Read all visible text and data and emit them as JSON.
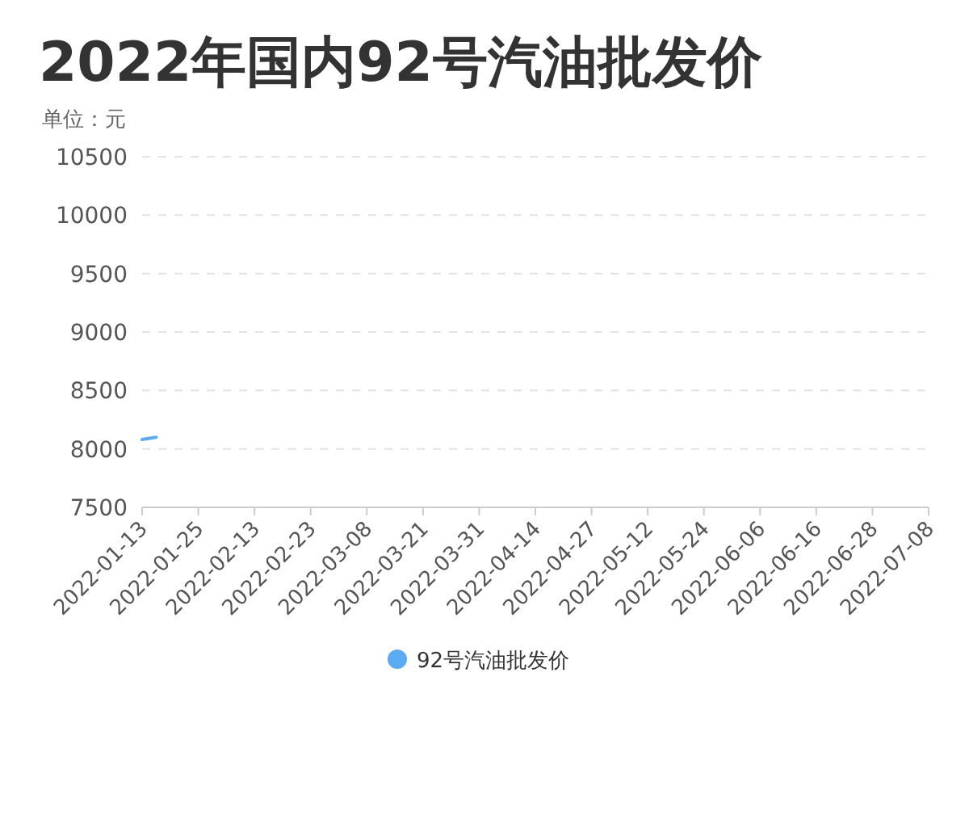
{
  "chart_data": {
    "type": "line",
    "title": "2022年国内92号汽油批发价",
    "ylabel": "单位：元",
    "categories": [
      "2022-01-13",
      null,
      null,
      null,
      "2022-01-25",
      null,
      null,
      null,
      "2022-02-13",
      null,
      null,
      null,
      "2022-02-23",
      null,
      null,
      null,
      "2022-03-08",
      null,
      null,
      null,
      "2022-03-21",
      null,
      null,
      null,
      "2022-03-31",
      null,
      null,
      null,
      "2022-04-14",
      null,
      null,
      null,
      "2022-04-27",
      null,
      null,
      null,
      "2022-05-12",
      null,
      null,
      null,
      "2022-05-24",
      null,
      null,
      null,
      "2022-06-06",
      null,
      null,
      null,
      "2022-06-16",
      null,
      null,
      null,
      "2022-06-28",
      null,
      null,
      null,
      "2022-07-08"
    ],
    "series": [
      {
        "name": "92号汽油批发价",
        "color": "#5aabf0",
        "values": [
          8080,
          8100,
          null,
          null,
          null,
          null,
          null,
          null,
          null,
          null,
          null,
          null,
          null,
          null,
          null,
          null,
          null,
          null,
          null,
          null,
          null,
          null,
          null,
          null,
          null,
          null,
          null,
          null,
          null,
          null,
          null,
          null,
          null,
          null,
          null,
          null,
          null,
          null,
          null,
          null,
          null,
          null,
          null,
          null,
          null,
          null,
          null,
          null,
          null,
          null,
          null,
          null,
          null,
          null,
          null,
          null,
          null
        ]
      }
    ],
    "ylim": [
      7500,
      10500
    ],
    "yticks": [
      7500,
      8000,
      8500,
      9000,
      9500,
      10000,
      10500
    ],
    "grid": "y",
    "legend": "bottom"
  }
}
